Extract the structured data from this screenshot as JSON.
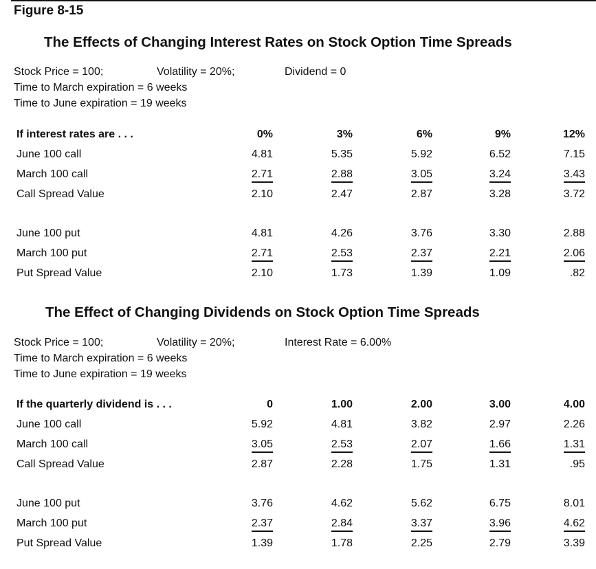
{
  "figure_label": "Figure 8-15",
  "sections": [
    {
      "title": "The Effects of Changing Interest Rates on Stock Option Time Spreads",
      "params": {
        "line1": [
          "Stock Price = 100;",
          "Volatility = 20%;",
          "Dividend = 0"
        ],
        "line2": "Time to March expiration = 6 weeks",
        "line3": "Time to June expiration = 19 weeks"
      },
      "header": {
        "label": "If interest rates are . . .",
        "cols": [
          "0%",
          "3%",
          "6%",
          "9%",
          "12%"
        ]
      },
      "rows": [
        {
          "label": "June 100 call",
          "values": [
            "4.81",
            "5.35",
            "5.92",
            "6.52",
            "7.15"
          ]
        },
        {
          "label": "March 100 call",
          "values": [
            "2.71",
            "2.88",
            "3.05",
            "3.24",
            "3.43"
          ]
        },
        {
          "label": "Call Spread Value",
          "values": [
            "2.10",
            "2.47",
            "2.87",
            "3.28",
            "3.72"
          ]
        },
        {
          "label": "June 100 put",
          "values": [
            "4.81",
            "4.26",
            "3.76",
            "3.30",
            "2.88"
          ]
        },
        {
          "label": "March 100 put",
          "values": [
            "2.71",
            "2.53",
            "2.37",
            "2.21",
            "2.06"
          ]
        },
        {
          "label": "Put Spread Value",
          "values": [
            "2.10",
            "1.73",
            "1.39",
            "1.09",
            ".82"
          ]
        }
      ]
    },
    {
      "title": "The Effect of Changing Dividends on Stock Option Time Spreads",
      "params": {
        "line1": [
          "Stock Price = 100;",
          "Volatility = 20%;",
          "Interest Rate = 6.00%"
        ],
        "line2": "Time to March expiration = 6 weeks",
        "line3": "Time to June expiration = 19 weeks"
      },
      "header": {
        "label": "If the quarterly dividend is . . .",
        "cols": [
          "0",
          "1.00",
          "2.00",
          "3.00",
          "4.00"
        ]
      },
      "rows": [
        {
          "label": "June 100 call",
          "values": [
            "5.92",
            "4.81",
            "3.82",
            "2.97",
            "2.26"
          ]
        },
        {
          "label": "March 100 call",
          "values": [
            "3.05",
            "2.53",
            "2.07",
            "1.66",
            "1.31"
          ]
        },
        {
          "label": "Call Spread Value",
          "values": [
            "2.87",
            "2.28",
            "1.75",
            "1.31",
            ".95"
          ]
        },
        {
          "label": "June 100 put",
          "values": [
            "3.76",
            "4.62",
            "5.62",
            "6.75",
            "8.01"
          ]
        },
        {
          "label": "March 100 put",
          "values": [
            "2.37",
            "2.84",
            "3.37",
            "3.96",
            "4.62"
          ]
        },
        {
          "label": "Put Spread Value",
          "values": [
            "1.39",
            "1.78",
            "2.25",
            "2.79",
            "3.39"
          ]
        }
      ]
    }
  ]
}
